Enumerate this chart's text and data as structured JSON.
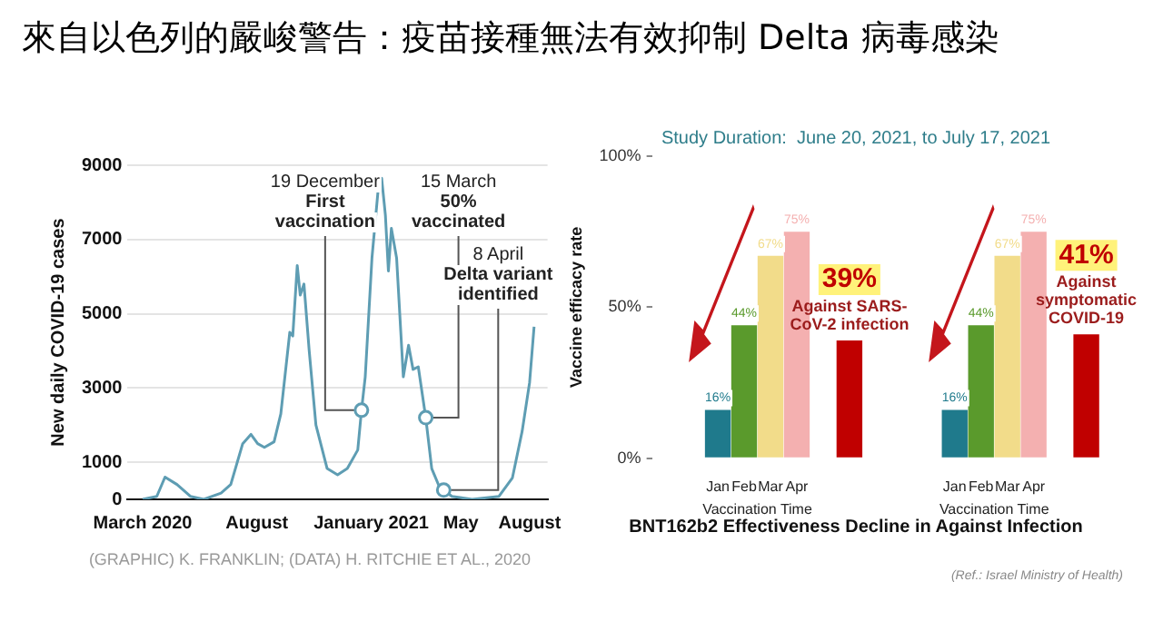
{
  "chart_data": [
    {
      "type": "other",
      "title": "來自以色列的嚴峻警告：疫苗接種無法有效抑制 Delta 病毒感染"
    },
    {
      "type": "line",
      "ylabel": "New daily COVID-19 cases",
      "color": "#5e9db3",
      "grid": "y",
      "x": [
        "2020-03-01",
        "2020-03-20",
        "2020-03-31",
        "2020-04-16",
        "2020-05-04",
        "2020-05-22",
        "2020-06-14",
        "2020-06-27",
        "2020-07-13",
        "2020-07-24",
        "2020-08-02",
        "2020-08-11",
        "2020-08-24",
        "2020-09-02",
        "2020-09-14",
        "2020-09-18",
        "2020-09-24",
        "2020-09-28",
        "2020-10-03",
        "2020-10-10",
        "2020-10-19",
        "2020-11-03",
        "2020-11-17",
        "2020-11-30",
        "2020-12-14",
        "2020-12-19",
        "2020-12-24",
        "2021-01-02",
        "2021-01-11",
        "2021-01-15",
        "2021-01-20",
        "2021-01-24",
        "2021-01-28",
        "2021-02-04",
        "2021-02-13",
        "2021-02-20",
        "2021-02-26",
        "2021-03-05",
        "2021-03-15",
        "2021-03-23",
        "2021-04-03",
        "2021-04-08",
        "2021-04-19",
        "2021-05-16",
        "2021-06-21",
        "2021-07-09",
        "2021-07-22",
        "2021-08-01",
        "2021-08-07"
      ],
      "values": [
        0,
        80,
        600,
        400,
        80,
        0,
        170,
        400,
        1500,
        1750,
        1500,
        1400,
        1550,
        2300,
        4500,
        4400,
        6300,
        5500,
        5800,
        4000,
        2000,
        830,
        660,
        830,
        1330,
        2400,
        3300,
        6500,
        8500,
        8650,
        7650,
        6150,
        7300,
        6500,
        3300,
        4150,
        3500,
        3570,
        2200,
        830,
        300,
        250,
        80,
        0,
        80,
        580,
        1830,
        3150,
        4650
      ],
      "xlim": [
        "2020-02-10",
        "2021-08-25"
      ],
      "xticks": [
        {
          "value": "2020-03-01",
          "label": "March 2020"
        },
        {
          "value": "2020-08-01",
          "label": "August"
        },
        {
          "value": "2021-01-01",
          "label": "January 2021"
        },
        {
          "value": "2021-05-01",
          "label": "May"
        },
        {
          "value": "2021-08-01",
          "label": "August"
        }
      ],
      "ylim": [
        0,
        9000
      ],
      "yticks": [
        0,
        1000,
        3000,
        5000,
        7000,
        9000
      ],
      "annotations": [
        {
          "text": "19 December\nFirst\nvaccination",
          "x": "2020-12-19",
          "y": 2400
        },
        {
          "text": "15 March\n50%\nvaccinated",
          "x": "2021-03-15",
          "y": 2200
        },
        {
          "text": "8 April\nDelta variant\nidentified",
          "x": "2021-04-08",
          "y": 250
        },
        "(GRAPHIC) K. FRANKLIN; (DATA) H. RITCHIE ET AL., 2020"
      ]
    },
    {
      "type": "bar",
      "title": "BNT162b2 Effectiveness Decline in Against Infection",
      "subtitle": "Study Duration:  June 20, 2021, to July 17, 2021",
      "ylabel": "Vaccine efficacy rate",
      "xlabel": "Vaccination Time",
      "categories": [
        null,
        null,
        "Jan",
        "Feb",
        "Mar",
        "Apr",
        null,
        null,
        null,
        null,
        null,
        "Jan",
        "Feb",
        "Mar",
        "Apr",
        null,
        null,
        null,
        null
      ],
      "values": [
        null,
        null,
        16,
        44,
        67,
        75,
        null,
        39,
        null,
        null,
        null,
        16,
        44,
        67,
        75,
        null,
        41,
        null,
        null
      ],
      "colors": [
        "#1f7a8c",
        "#1f7a8c",
        "#1f7a8c",
        "#5a9a2c",
        "#f2dc8a",
        "#f4b0b0",
        "#c00000",
        "#c00000",
        "#c00000",
        "#c00000",
        "#1f7a8c",
        "#1f7a8c",
        "#5a9a2c",
        "#f2dc8a",
        "#f4b0b0",
        "#c00000",
        "#c00000",
        "#c00000",
        "#c00000"
      ],
      "value_labels": [
        null,
        null,
        "16%",
        "44%",
        "67%",
        "75%",
        null,
        "39%",
        null,
        null,
        null,
        "16%",
        "44%",
        "67%",
        "75%",
        null,
        "41%",
        null,
        null
      ],
      "ylim": [
        0,
        100
      ],
      "yticks": [
        {
          "value": 0,
          "label": "0%"
        },
        {
          "value": 50,
          "label": "50%"
        },
        {
          "value": 100,
          "label": "100%"
        }
      ],
      "annotations": [
        "Against SARS-\nCoV-2 infection",
        "Against\nsymptomatic\nCOVID-19",
        "(Ref.:  Israel Ministry of Health)"
      ]
    }
  ]
}
